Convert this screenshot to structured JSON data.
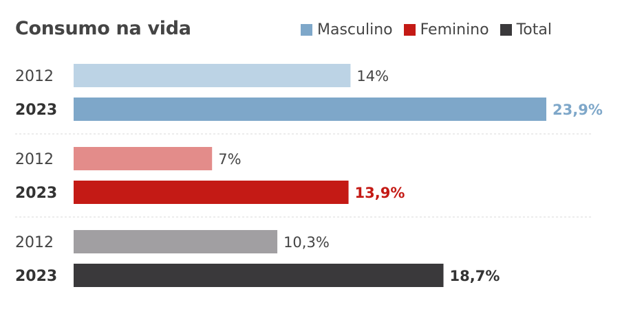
{
  "chart_data": {
    "type": "bar",
    "orientation": "horizontal",
    "title": "Consumo na vida",
    "legend": [
      {
        "label": "Masculino",
        "color": "#7ea7c9"
      },
      {
        "label": "Feminino",
        "color": "#c41a15"
      },
      {
        "label": "Total",
        "color": "#3a393b"
      }
    ],
    "legend_position": "top-right",
    "groups": [
      {
        "series": "Masculino",
        "rows": [
          {
            "year": "2012",
            "value": 14,
            "label": "14%",
            "bold": false,
            "color": "#bcd3e5",
            "label_color": "#444444"
          },
          {
            "year": "2023",
            "value": 23.9,
            "label": "23,9%",
            "bold": true,
            "color": "#7ea7c9",
            "label_color": "#7ea7c9"
          }
        ]
      },
      {
        "series": "Feminino",
        "rows": [
          {
            "year": "2012",
            "value": 7,
            "label": "7%",
            "bold": false,
            "color": "#e38c8a",
            "label_color": "#444444"
          },
          {
            "year": "2023",
            "value": 13.9,
            "label": "13,9%",
            "bold": true,
            "color": "#c41a15",
            "label_color": "#c41a15"
          }
        ]
      },
      {
        "series": "Total",
        "rows": [
          {
            "year": "2012",
            "value": 10.3,
            "label": "10,3%",
            "bold": false,
            "color": "#a19fa2",
            "label_color": "#444444"
          },
          {
            "year": "2023",
            "value": 18.7,
            "label": "18,7%",
            "bold": true,
            "color": "#3a393b",
            "label_color": "#333333"
          }
        ]
      }
    ],
    "grid": false
  }
}
